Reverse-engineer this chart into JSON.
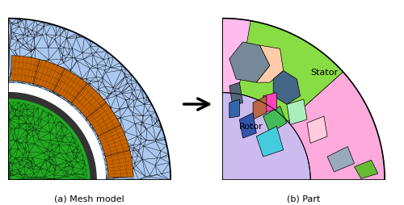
{
  "fig_width": 5.0,
  "fig_height": 2.55,
  "dpi": 100,
  "bg_color": "#ffffff",
  "label_a": "(a) Mesh model",
  "label_b": "(b) Part",
  "stator_label": "Stator",
  "rotor_label": "Rotor",
  "stator_color": "#aac8f0",
  "coil_color": "#c86400",
  "rotor_color": "#22aa22",
  "arrow_color": "#111111",
  "part_green": "#88dd44",
  "part_pink_large": "#ffaadd",
  "part_pink_small": "#ffbbcc",
  "part_lavender": "#ccbbee",
  "part_slate": "#778899",
  "part_slate2": "#99aabb",
  "part_salmon": "#ffccaa",
  "part_teal": "#446688",
  "part_magenta": "#ff44bb",
  "part_brown": "#bb6644",
  "part_green2": "#44bb55",
  "part_lightgreen": "#aaeebb",
  "part_cyan": "#44ccdd",
  "part_blue": "#3355aa",
  "part_green3": "#66bb33",
  "part_pink2": "#ffccdd"
}
